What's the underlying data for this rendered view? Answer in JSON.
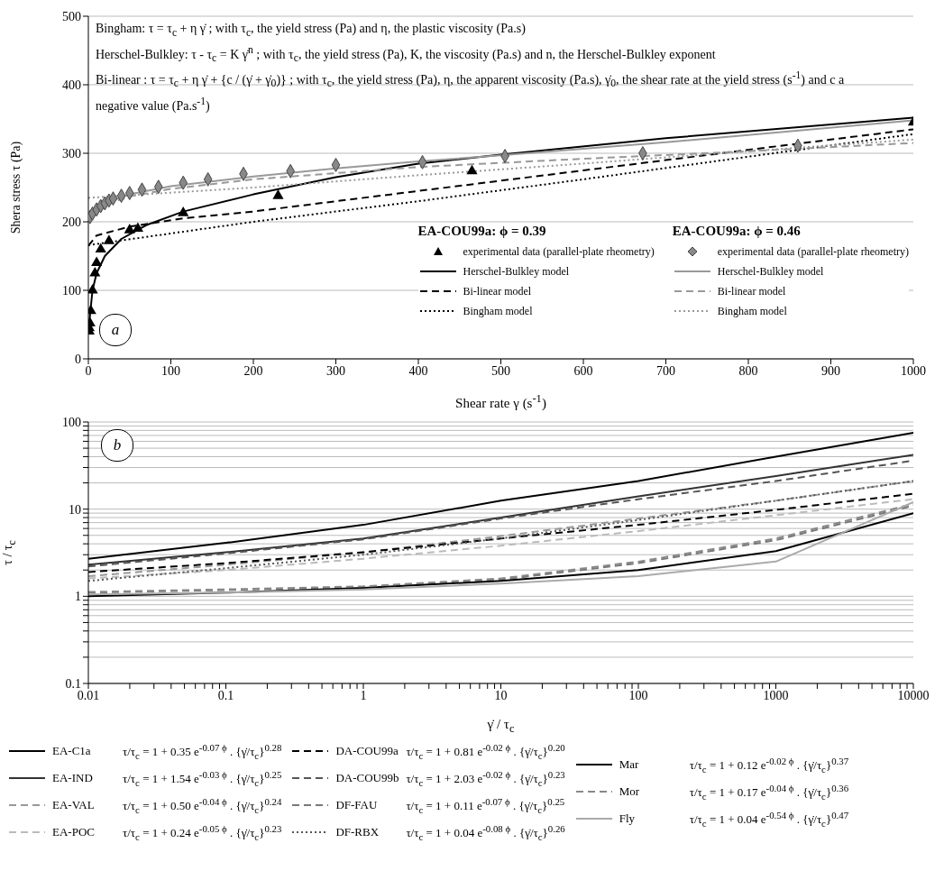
{
  "chart_data": [
    {
      "type": "line",
      "xlabel": "Shear rate  γ (s$^{-1}$)",
      "ylabel": "Shera stress   τ (Pa)",
      "xlim": [
        0,
        1000
      ],
      "xticks": [
        0,
        100,
        200,
        300,
        400,
        500,
        600,
        700,
        800,
        900,
        1000
      ],
      "ylim": [
        0,
        500
      ],
      "yticks": [
        0,
        100,
        200,
        300,
        400,
        500
      ],
      "grid": "y",
      "legend": "bottom right",
      "annotations": [
        "Bingham:  τ = τ$_{c}$ + η γ̇  ;  with τ$_{c}$, the yield stress (Pa) and η, the plastic viscosity (Pa.s)",
        "Herschel-Bulkley:  τ - τ$_{c}$ = K  γ̇$^{n}$ ;  with τ$_{c}$, the yield stress (Pa),  K, the viscosity (Pa.s) and n, the Herschel-Bulkley exponent",
        "Bi-linear :  τ = τ$_{c}$ + η γ̇ + {c / (γ̇ + γ̇$_{0}$)} ;  with τ$_{c}$, the yield stress (Pa), η, the apparent viscosity (Pa.s), γ̇$_{0}$, the shear rate at the yield stress (s$^{-1}$) and c a negative value (Pa.s$^{-1}$)",
        "EA-COU99a:  ϕ = 0.39",
        "EA-COU99a:  ϕ = 0.46",
        "a"
      ],
      "series": [
        {
          "name": "experimental data (parallel-plate rheometry)",
          "type": "scatter",
          "marker": "triangle",
          "color": "#000000",
          "x": [
            1,
            1,
            2,
            3,
            5,
            8,
            10,
            15,
            25,
            50,
            60,
            115,
            230,
            465,
            1000
          ],
          "values": [
            40,
            45,
            52,
            70,
            100,
            125,
            140,
            160,
            172,
            188,
            190,
            213,
            238,
            274,
            345
          ]
        },
        {
          "name": "Herschel-Bulkley model",
          "line_style": "solid",
          "color": "#000000",
          "x": [
            0,
            5,
            10,
            20,
            40,
            70,
            115,
            200,
            300,
            400,
            500,
            700,
            1000
          ],
          "values": [
            40,
            100,
            125,
            150,
            175,
            195,
            215,
            240,
            265,
            285,
            298,
            322,
            352
          ]
        },
        {
          "name": "Bi-linear model",
          "line_style": "dashed",
          "color": "#000000",
          "x": [
            0,
            10,
            50,
            115,
            200,
            400,
            600,
            800,
            1000
          ],
          "values": [
            165,
            180,
            193,
            205,
            215,
            245,
            275,
            305,
            335
          ]
        },
        {
          "name": "Bingham model",
          "line_style": "dotted",
          "color": "#000000",
          "x": [
            0,
            200,
            400,
            600,
            800,
            1000
          ],
          "values": [
            166,
            200,
            230,
            262,
            295,
            328
          ]
        },
        {
          "name": "experimental data (parallel-plate rheometry)",
          "type": "scatter",
          "marker": "diamond",
          "color": "#888888",
          "x": [
            2,
            5,
            10,
            15,
            20,
            25,
            30,
            40,
            50,
            65,
            85,
            115,
            145,
            188,
            245,
            300,
            405,
            505,
            672,
            860
          ],
          "values": [
            207,
            212,
            218,
            223,
            227,
            231,
            234,
            238,
            242,
            247,
            251,
            257,
            262,
            270,
            274,
            283,
            287,
            296,
            300,
            311
          ]
        },
        {
          "name": "Herschel-Bulkley model",
          "line_style": "solid",
          "color": "#999999",
          "x": [
            0,
            5,
            20,
            50,
            100,
            200,
            300,
            400,
            500,
            700,
            1000
          ],
          "values": [
            200,
            215,
            228,
            240,
            252,
            266,
            278,
            288,
            297,
            316,
            348
          ]
        },
        {
          "name": "Bi-linear model",
          "line_style": "dashed",
          "color": "#999999",
          "x": [
            0,
            20,
            50,
            100,
            200,
            400,
            600,
            800,
            1000
          ],
          "values": [
            205,
            225,
            237,
            248,
            262,
            280,
            292,
            303,
            315
          ]
        },
        {
          "name": "Bingham model",
          "line_style": "dotted",
          "color": "#999999",
          "x": [
            0,
            200,
            400,
            600,
            800,
            1000
          ],
          "values": [
            235,
            250,
            268,
            285,
            303,
            320
          ]
        }
      ]
    },
    {
      "type": "line",
      "xlabel": "γ̇ / τ$_{c}$",
      "ylabel": "τ / τ$_{c}$",
      "log": "xy",
      "grid": "y",
      "legend": "bottom",
      "xlim": [
        0.01,
        10000
      ],
      "ylim": [
        0.1,
        100
      ],
      "xticks": [
        0.01,
        {
          "value": 0.02,
          "label": null
        },
        {
          "value": 0.03,
          "label": null
        },
        {
          "value": 0.04,
          "label": null
        },
        {
          "value": 0.05,
          "label": null
        },
        {
          "value": 0.06,
          "label": null
        },
        {
          "value": 0.07,
          "label": null
        },
        {
          "value": 0.08,
          "label": null
        },
        {
          "value": 0.09,
          "label": null
        },
        0.1,
        {
          "value": 0.2,
          "label": null
        },
        {
          "value": 0.3,
          "label": null
        },
        {
          "value": 0.4,
          "label": null
        },
        {
          "value": 0.5,
          "label": null
        },
        {
          "value": 0.6,
          "label": null
        },
        {
          "value": 0.7,
          "label": null
        },
        {
          "value": 0.8,
          "label": null
        },
        {
          "value": 0.9,
          "label": null
        },
        1,
        {
          "value": 2,
          "label": null
        },
        {
          "value": 3,
          "label": null
        },
        {
          "value": 4,
          "label": null
        },
        {
          "value": 5,
          "label": null
        },
        {
          "value": 6,
          "label": null
        },
        {
          "value": 7,
          "label": null
        },
        {
          "value": 8,
          "label": null
        },
        {
          "value": 9,
          "label": null
        },
        10,
        {
          "value": 20,
          "label": null
        },
        {
          "value": 30,
          "label": null
        },
        {
          "value": 40,
          "label": null
        },
        {
          "value": 50,
          "label": null
        },
        {
          "value": 60,
          "label": null
        },
        {
          "value": 70,
          "label": null
        },
        {
          "value": 80,
          "label": null
        },
        {
          "value": 90,
          "label": null
        },
        100,
        {
          "value": 200,
          "label": null
        },
        {
          "value": 300,
          "label": null
        },
        {
          "value": 400,
          "label": null
        },
        {
          "value": 500,
          "label": null
        },
        {
          "value": 600,
          "label": null
        },
        {
          "value": 700,
          "label": null
        },
        {
          "value": 800,
          "label": null
        },
        {
          "value": 900,
          "label": null
        },
        1000,
        {
          "value": 2000,
          "label": null
        },
        {
          "value": 3000,
          "label": null
        },
        {
          "value": 4000,
          "label": null
        },
        {
          "value": 5000,
          "label": null
        },
        {
          "value": 6000,
          "label": null
        },
        {
          "value": 7000,
          "label": null
        },
        {
          "value": 8000,
          "label": null
        },
        {
          "value": 9000,
          "label": null
        },
        10000
      ],
      "yticks": [
        0.1,
        {
          "value": 0.2,
          "label": null
        },
        {
          "value": 0.3,
          "label": null
        },
        {
          "value": 0.4,
          "label": null
        },
        {
          "value": 0.5,
          "label": null
        },
        {
          "value": 0.6,
          "label": null
        },
        {
          "value": 0.7,
          "label": null
        },
        {
          "value": 0.8,
          "label": null
        },
        {
          "value": 0.9,
          "label": null
        },
        1,
        {
          "value": 2,
          "label": null
        },
        {
          "value": 3,
          "label": null
        },
        {
          "value": 4,
          "label": null
        },
        {
          "value": 5,
          "label": null
        },
        {
          "value": 6,
          "label": null
        },
        {
          "value": 7,
          "label": null
        },
        {
          "value": 8,
          "label": null
        },
        {
          "value": 9,
          "label": null
        },
        10,
        {
          "value": 20,
          "label": null
        },
        {
          "value": 30,
          "label": null
        },
        {
          "value": 40,
          "label": null
        },
        {
          "value": 50,
          "label": null
        },
        {
          "value": 60,
          "label": null
        },
        {
          "value": 70,
          "label": null
        },
        {
          "value": 80,
          "label": null
        },
        {
          "value": 90,
          "label": null
        },
        100
      ],
      "x": [
        0.01,
        0.1,
        1,
        10,
        100,
        1000,
        10000
      ],
      "annotations": [
        "b",
        "τ/τ$_{c}$ = 1 + 0.35 e$^{-0.07 ϕ}$ . {γ̇/τ$_{c}$}$^{0.28}$",
        "τ/τ$_{c}$ = 1 + 1.54 e$^{-0.03 ϕ}$ . {γ̇/τ$_{c}$}$^{0.25}$",
        "τ/τ$_{c}$ = 1 + 0.50 e$^{-0.04 ϕ}$ . {γ̇/τ$_{c}$}$^{0.24}$",
        "τ/τ$_{c}$ = 1 + 0.24 e$^{-0.05 ϕ}$ . {γ̇/τ$_{c}$}$^{0.23}$",
        "τ/τ$_{c}$ = 1 + 0.81 e$^{-0.02 ϕ}$ . {γ̇/τ$_{c}$}$^{0.20}$",
        "τ/τ$_{c}$ = 1 + 2.03 e$^{-0.02 ϕ}$ . {γ̇/τ$_{c}$}$^{0.23}$",
        "τ/τ$_{c}$ = 1 + 0.11 e$^{-0.07 ϕ}$ . {γ̇/τ$_{c}$}$^{0.25}$",
        "τ/τ$_{c}$ = 1 + 0.04 e$^{-0.08 ϕ}$ . {γ̇/τ$_{c}$}$^{0.26}$",
        "τ/τ$_{c}$ = 1 + 0.12 e$^{-0.02 ϕ}$ . {γ̇/τ$_{c}$}$^{0.37}$",
        "τ/τ$_{c}$ = 1 + 0.17 e$^{-0.04 ϕ}$ . {γ̇/τ$_{c}$}$^{0.36}$",
        "τ/τ$_{c}$ = 1 + 0.04 e$^{-0.54 ϕ}$ . {γ̇/τ$_{c}$}$^{0.47}$"
      ],
      "series": [
        {
          "name": "EA-C1a",
          "line_style": "solid",
          "color": "#000000",
          "values": [
            2.7,
            4.1,
            6.6,
            12.5,
            21,
            40,
            75
          ]
        },
        {
          "name": "EA-IND",
          "line_style": "solid",
          "color": "#333333",
          "values": [
            2.3,
            3.2,
            4.6,
            8,
            14,
            24,
            42
          ]
        },
        {
          "name": "EA-VAL",
          "line_style": "dashed",
          "color": "#999999",
          "values": [
            1.7,
            2.3,
            3.2,
            4.9,
            7.8,
            12.5,
            21
          ]
        },
        {
          "name": "EA-POC",
          "line_style": "dashed",
          "color": "#bbbbbb",
          "values": [
            1.6,
            2.0,
            2.7,
            3.8,
            5.6,
            8.5,
            13
          ]
        },
        {
          "name": "DA-COU99a",
          "line_style": "dashed",
          "color": "#000000",
          "values": [
            1.9,
            2.4,
            3.2,
            4.6,
            6.6,
            9.8,
            15
          ]
        },
        {
          "name": "DA-COU99b",
          "line_style": "dashed",
          "color": "#555555",
          "values": [
            2.2,
            3.1,
            4.5,
            7.8,
            13,
            21,
            36
          ]
        },
        {
          "name": "DF-FAU",
          "line_style": "dashed",
          "color": "#777777",
          "values": [
            1.1,
            1.18,
            1.28,
            1.55,
            2.4,
            4.4,
            11
          ]
        },
        {
          "name": "DF-RBX",
          "line_style": "dotted",
          "color": "#555555",
          "values": [
            1.5,
            2.1,
            3.0,
            4.6,
            7.5,
            12.5,
            21
          ]
        },
        {
          "name": "Mar",
          "line_style": "solid",
          "color": "#000000",
          "values": [
            1.0,
            1.1,
            1.25,
            1.5,
            2.0,
            3.3,
            9
          ]
        },
        {
          "name": "Mor",
          "line_style": "dashed",
          "color": "#888888",
          "values": [
            1.12,
            1.2,
            1.3,
            1.6,
            2.5,
            4.6,
            11.5
          ]
        },
        {
          "name": "Fly",
          "line_style": "solid",
          "color": "#aaaaaa",
          "values": [
            1.05,
            1.1,
            1.2,
            1.4,
            1.7,
            2.5,
            12
          ]
        }
      ]
    }
  ]
}
